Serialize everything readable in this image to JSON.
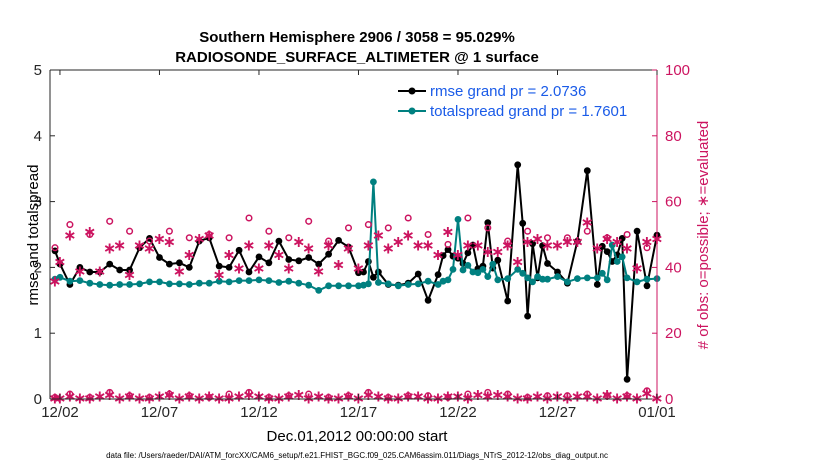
{
  "chart_data": {
    "type": "line",
    "title": "Southern Hemisphere 2906 / 3058 = 95.029%",
    "subtitle": "RADIOSONDE_SURFACE_ALTIMETER @ 1 surface",
    "xlabel": "Dec.01,2012 00:00:00 start",
    "ylabel_left": "rmse and totalspread",
    "ylabel_right": "# of obs: o=possible; ∗=evaluated",
    "footer": "data file: /Users/raeder/DAI/ATM_forcXX/CAM6_setup/f.e21.FHIST_BGC.f09_025.CAM6assim.011/Diags_NTrS_2012-12/obs_diag_output.nc",
    "xlim": [
      1.5,
      32.0
    ],
    "ylim_left": [
      0,
      5
    ],
    "ylim_right": [
      0,
      100
    ],
    "xticks": [
      2,
      7,
      12,
      17,
      22,
      27,
      32
    ],
    "xticklabels": [
      "12/02",
      "12/07",
      "12/12",
      "12/17",
      "12/22",
      "12/27",
      "01/01"
    ],
    "yticks_left": [
      0,
      1,
      2,
      3,
      4,
      5
    ],
    "yticklabels_left": [
      "0",
      "1",
      "2",
      "3",
      "4",
      "5"
    ],
    "yticks_right": [
      0,
      20,
      40,
      60,
      80,
      100
    ],
    "yticklabels_right": [
      "0",
      "20",
      "40",
      "60",
      "80",
      "100"
    ],
    "legend": [
      {
        "label": "rmse grand pr = 2.0736",
        "color": "#000000"
      },
      {
        "label": "totalspread grand pr = 1.7601",
        "color": "#008080"
      }
    ],
    "colors": {
      "rmse": "#000000",
      "spread": "#008080",
      "obs": "#cc1460"
    },
    "series": [
      {
        "name": "rmse",
        "axis": "left",
        "x": [
          1.75,
          2.0,
          2.5,
          3.0,
          3.5,
          4.0,
          4.5,
          5.0,
          5.5,
          6.0,
          6.5,
          7.0,
          7.5,
          8.0,
          8.5,
          9.0,
          9.5,
          10.0,
          10.5,
          11.0,
          11.5,
          12.0,
          12.5,
          13.0,
          13.5,
          14.0,
          14.5,
          15.0,
          15.5,
          16.0,
          16.5,
          17.0,
          17.25,
          17.5,
          17.75,
          18.0,
          18.5,
          19.0,
          19.5,
          20.0,
          20.5,
          21.0,
          21.25,
          21.5,
          21.75,
          22.0,
          22.25,
          22.5,
          22.75,
          23.0,
          23.25,
          23.5,
          23.75,
          24.0,
          24.5,
          25.0,
          25.25,
          25.5,
          25.75,
          26.0,
          26.25,
          26.5,
          27.0,
          27.5,
          28.0,
          28.5,
          29.0,
          29.25,
          29.5,
          29.75,
          30.0,
          30.25,
          30.5,
          31.0,
          31.5,
          32.0
        ],
        "y": [
          2.25,
          2.05,
          1.74,
          2.0,
          1.93,
          1.93,
          2.05,
          1.96,
          1.96,
          2.3,
          2.44,
          2.15,
          2.05,
          2.07,
          2.0,
          2.4,
          2.45,
          2.02,
          2.0,
          2.26,
          1.93,
          2.16,
          2.07,
          2.4,
          2.12,
          2.1,
          2.15,
          2.05,
          2.2,
          2.41,
          2.31,
          1.92,
          1.93,
          2.09,
          1.85,
          1.93,
          1.74,
          1.73,
          1.76,
          1.9,
          1.5,
          1.89,
          2.18,
          2.27,
          2.17,
          2.14,
          2.06,
          2.22,
          2.34,
          1.98,
          2.02,
          2.68,
          1.99,
          2.11,
          1.49,
          3.56,
          2.67,
          1.26,
          2.36,
          1.84,
          2.33,
          2.06,
          1.93,
          1.76,
          2.4,
          3.47,
          1.74,
          2.32,
          2.24,
          2.09,
          2.19,
          2.44,
          0.3,
          2.55,
          1.72,
          2.49
        ]
      },
      {
        "name": "totalspread",
        "axis": "left",
        "x": [
          1.75,
          2.0,
          2.5,
          3.0,
          3.5,
          4.0,
          4.5,
          5.0,
          5.5,
          6.0,
          6.5,
          7.0,
          7.5,
          8.0,
          8.5,
          9.0,
          9.5,
          10.0,
          10.5,
          11.0,
          11.5,
          12.0,
          12.5,
          13.0,
          13.5,
          14.0,
          14.5,
          15.0,
          15.5,
          16.0,
          16.5,
          17.0,
          17.25,
          17.5,
          17.75,
          18.0,
          18.5,
          19.0,
          19.5,
          20.0,
          20.5,
          21.0,
          21.25,
          21.5,
          21.75,
          22.0,
          22.25,
          22.5,
          22.75,
          23.0,
          23.25,
          23.5,
          23.75,
          24.0,
          24.5,
          25.0,
          25.25,
          25.5,
          25.75,
          26.0,
          26.25,
          26.5,
          27.0,
          27.5,
          28.0,
          28.5,
          29.0,
          29.25,
          29.5,
          29.75,
          30.0,
          30.25,
          30.5,
          31.0,
          31.5,
          32.0
        ],
        "y": [
          1.82,
          1.85,
          1.79,
          1.8,
          1.76,
          1.74,
          1.73,
          1.74,
          1.74,
          1.75,
          1.78,
          1.78,
          1.75,
          1.75,
          1.74,
          1.76,
          1.76,
          1.79,
          1.78,
          1.8,
          1.8,
          1.81,
          1.8,
          1.77,
          1.79,
          1.76,
          1.73,
          1.65,
          1.72,
          1.72,
          1.72,
          1.72,
          1.73,
          1.75,
          3.3,
          1.77,
          1.75,
          1.72,
          1.74,
          1.75,
          1.79,
          1.74,
          1.79,
          1.81,
          1.97,
          2.73,
          1.96,
          2.03,
          1.93,
          1.92,
          1.97,
          1.86,
          2.05,
          1.81,
          1.83,
          1.97,
          1.91,
          1.84,
          1.78,
          1.86,
          1.82,
          1.82,
          1.86,
          1.78,
          1.83,
          1.84,
          1.84,
          1.91,
          1.81,
          2.34,
          2.09,
          2.16,
          1.84,
          1.78,
          1.82,
          1.83
        ]
      },
      {
        "name": "obs possible (o)",
        "axis": "right",
        "x": [
          1.75,
          2.5,
          3.5,
          4.5,
          5.5,
          6.5,
          7.5,
          8.5,
          9.5,
          10.5,
          11.5,
          12.5,
          13.5,
          14.5,
          15.5,
          16.5,
          17.5,
          18.5,
          19.5,
          20.5,
          21.5,
          22.5,
          23.5,
          24.5,
          25.5,
          26.5,
          27.5,
          28.5,
          29.5,
          30.5,
          31.5
        ],
        "y": [
          46,
          53,
          50,
          54,
          51,
          48,
          51,
          49,
          50,
          49,
          55,
          51,
          49,
          54,
          48,
          52,
          53,
          52,
          55,
          50,
          47,
          55,
          52,
          48,
          51,
          49,
          49,
          51,
          49,
          50,
          46
        ],
        "marker": "o"
      },
      {
        "name": "obs evaluated (*)",
        "axis": "right",
        "x": [
          1.75,
          2.0,
          2.5,
          3.0,
          3.5,
          4.0,
          4.5,
          5.0,
          5.5,
          6.0,
          6.5,
          7.0,
          7.5,
          8.0,
          8.5,
          9.0,
          9.5,
          10.0,
          10.5,
          11.0,
          11.5,
          12.0,
          12.5,
          13.0,
          13.5,
          14.0,
          14.5,
          15.0,
          15.5,
          16.0,
          16.5,
          17.0,
          17.5,
          18.0,
          18.5,
          19.0,
          19.5,
          20.0,
          20.5,
          21.0,
          21.5,
          22.0,
          22.5,
          23.0,
          23.5,
          24.0,
          24.5,
          25.0,
          25.5,
          26.0,
          26.5,
          27.0,
          27.5,
          28.0,
          28.5,
          29.0,
          29.5,
          30.0,
          30.5,
          31.0,
          31.5,
          32.0
        ],
        "y": [
          36,
          42,
          50,
          39,
          51,
          39,
          46,
          47,
          38,
          47,
          46,
          49,
          48,
          39,
          44,
          49,
          50,
          38,
          44,
          40,
          47,
          40,
          47,
          44,
          40,
          48,
          46,
          39,
          47,
          41,
          46,
          40,
          47,
          50,
          46,
          48,
          50,
          47,
          47,
          44,
          51,
          44,
          47,
          47,
          45,
          45,
          47,
          42,
          48,
          49,
          47,
          47,
          48,
          48,
          54,
          46,
          49,
          48,
          46,
          40,
          48,
          49
        ],
        "marker": "*"
      },
      {
        "name": "obs count near zero (o)",
        "axis": "right",
        "x": [
          1.75,
          2.5,
          3.5,
          4.5,
          5.5,
          6.5,
          7.5,
          8.5,
          9.5,
          10.5,
          11.5,
          12.5,
          13.5,
          14.5,
          15.5,
          16.5,
          17.5,
          18.5,
          19.5,
          20.5,
          21.5,
          22.5,
          23.5,
          24.5,
          25.5,
          26.5,
          27.5,
          28.5,
          29.5,
          30.5,
          31.5
        ],
        "y": [
          0.5,
          1.5,
          0.5,
          2,
          1,
          0.5,
          1.5,
          1,
          0.5,
          1.5,
          2,
          0.5,
          1,
          1.5,
          0.5,
          1,
          2,
          0.5,
          1,
          1,
          0.5,
          1.5,
          2,
          1.5,
          0.5,
          1,
          1,
          1.5,
          1,
          1,
          2.5
        ],
        "marker": "o"
      },
      {
        "name": "obs count near zero (*)",
        "axis": "right",
        "x": [
          1.75,
          2.0,
          2.5,
          3.0,
          3.5,
          4.0,
          4.5,
          5.0,
          5.5,
          6.0,
          6.5,
          7.0,
          7.5,
          8.0,
          8.5,
          9.0,
          9.5,
          10.0,
          10.5,
          11.0,
          11.5,
          12.0,
          12.5,
          13.0,
          13.5,
          14.0,
          14.5,
          15.0,
          15.5,
          16.0,
          16.5,
          17.0,
          17.5,
          18.0,
          18.5,
          19.0,
          19.5,
          20.0,
          20.5,
          21.0,
          21.5,
          22.0,
          22.5,
          23.0,
          23.5,
          24.0,
          24.5,
          25.0,
          25.5,
          26.0,
          26.5,
          27.0,
          27.5,
          28.0,
          28.5,
          29.0,
          29.5,
          30.0,
          30.5,
          31.0,
          31.5,
          32.0
        ],
        "y": [
          0.5,
          0.5,
          1,
          0.5,
          0.5,
          1,
          1.5,
          0.5,
          1,
          0.5,
          0.5,
          1,
          1.5,
          0.5,
          1,
          0.5,
          1,
          0.5,
          0.5,
          1,
          1.5,
          1,
          0.5,
          0.5,
          1,
          1.5,
          0.5,
          1,
          0.5,
          0.5,
          1,
          0.5,
          1.5,
          1,
          0.5,
          0.5,
          1,
          1,
          0.5,
          0.5,
          1,
          1,
          0.5,
          1.5,
          1,
          1.5,
          1,
          0.5,
          0.5,
          1,
          0.5,
          1,
          0.5,
          1,
          1,
          0.5,
          1.5,
          0.5,
          1,
          0.5,
          2,
          0.5
        ],
        "marker": "*"
      }
    ]
  }
}
